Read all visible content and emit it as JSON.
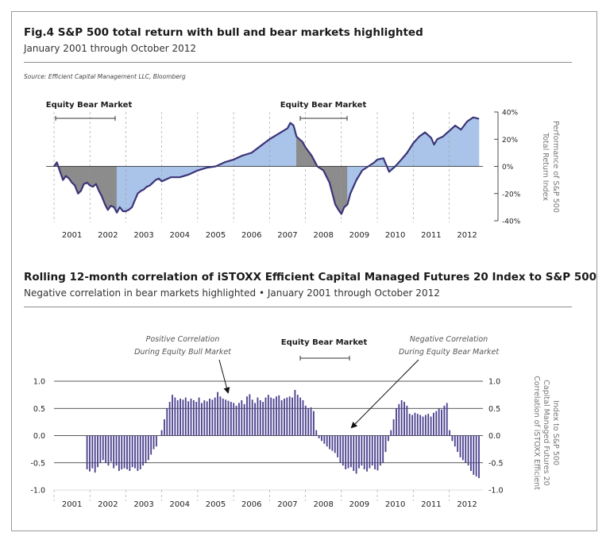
{
  "figure": {
    "title": "Fig.4  S&P 500 total return with bull and bear markets highlighted",
    "subtitle": "January 2001 through October 2012",
    "source": "Source: Efficient Capital Management LLC, Bloomberg"
  },
  "section2": {
    "title": "Rolling 12-month correlation of iSTOXX Efficient Capital Managed Futures 20 Index to S&P 500",
    "subtitle": "Negative correlation in bear markets highlighted • January 2001 through October 2012"
  },
  "chart_data": [
    {
      "type": "area",
      "x_axis": [
        "2001",
        "2002",
        "2003",
        "2004",
        "2005",
        "2006",
        "2007",
        "2008",
        "2009",
        "2010",
        "2011",
        "2012"
      ],
      "ylabel_lines": [
        "Performance of S&P 500",
        "Total Return Index"
      ],
      "yticks": [
        "40%",
        "20%",
        "0%",
        "-20%",
        "-40%"
      ],
      "ylim": [
        -40,
        40
      ],
      "xlim": [
        2001.0,
        2012.83
      ],
      "bear_label": "Equity Bear Market",
      "bear_markets": [
        [
          2001.0,
          2002.75
        ],
        [
          2007.75,
          2009.17
        ]
      ],
      "colors": {
        "bull": "#a9c4e8",
        "bear": "#8c8c8c",
        "line": "#3b3478"
      },
      "series": [
        {
          "x": [
            2001.0,
            2001.08,
            2001.17,
            2001.25,
            2001.33,
            2001.42,
            2001.5,
            2001.58,
            2001.67,
            2001.75,
            2001.83,
            2001.92,
            2002.0,
            2002.08,
            2002.17,
            2002.25,
            2002.33,
            2002.42,
            2002.5,
            2002.58,
            2002.67,
            2002.75,
            2002.83,
            2002.92,
            2003.0,
            2003.08,
            2003.17,
            2003.25,
            2003.33,
            2003.42,
            2003.5,
            2003.58,
            2003.67,
            2003.75,
            2003.83,
            2003.92,
            2004.0,
            2004.25,
            2004.5,
            2004.75,
            2005.0,
            2005.25,
            2005.5,
            2005.75,
            2006.0,
            2006.25,
            2006.5,
            2006.75,
            2007.0,
            2007.25,
            2007.5,
            2007.58,
            2007.67,
            2007.75,
            2007.83,
            2007.92,
            2008.0,
            2008.17,
            2008.33,
            2008.5,
            2008.67,
            2008.75,
            2008.83,
            2008.92,
            2009.0,
            2009.08,
            2009.17,
            2009.25,
            2009.42,
            2009.58,
            2009.75,
            2009.92,
            2010.0,
            2010.17,
            2010.33,
            2010.5,
            2010.67,
            2010.83,
            2011.0,
            2011.17,
            2011.33,
            2011.5,
            2011.58,
            2011.67,
            2011.83,
            2012.0,
            2012.17,
            2012.33,
            2012.5,
            2012.67,
            2012.83
          ],
          "y": [
            0,
            3,
            -4,
            -10,
            -7,
            -9,
            -12,
            -14,
            -20,
            -18,
            -13,
            -12,
            -14,
            -15,
            -13,
            -18,
            -22,
            -28,
            -32,
            -29,
            -30,
            -34,
            -30,
            -33,
            -33,
            -32,
            -30,
            -25,
            -20,
            -18,
            -17,
            -15,
            -14,
            -12,
            -10,
            -9,
            -11,
            -8,
            -8,
            -6,
            -3,
            -1,
            0,
            3,
            5,
            8,
            10,
            15,
            20,
            24,
            28,
            32,
            30,
            22,
            20,
            18,
            14,
            8,
            0,
            -3,
            -12,
            -20,
            -28,
            -32,
            -35,
            -30,
            -28,
            -20,
            -10,
            -3,
            0,
            3,
            5,
            6,
            -4,
            0,
            5,
            10,
            17,
            22,
            25,
            21,
            16,
            20,
            22,
            26,
            30,
            27,
            33,
            36,
            35
          ]
        }
      ]
    },
    {
      "type": "bar",
      "x_axis": [
        "2001",
        "2002",
        "2003",
        "2004",
        "2005",
        "2006",
        "2007",
        "2008",
        "2009",
        "2010",
        "2011",
        "2012"
      ],
      "ylabel_lines": [
        "Correlation of iSTOXX Efficient",
        "Capital Managed Futures 20",
        "Index to S&P 500"
      ],
      "yticks": [
        "1.0",
        "0.5",
        "0.0",
        "-0.5",
        "-1.0"
      ],
      "ylim": [
        -1.0,
        1.0
      ],
      "xlim": [
        2001.0,
        2012.83
      ],
      "bear_label": "Equity Bear Market",
      "bear_range": [
        2007.75,
        2009.17
      ],
      "annotations": {
        "positive": [
          "Positive Correlation",
          "During Equity Bull Market"
        ],
        "negative": [
          "Negative Correlation",
          "During Equity Bear Market"
        ]
      },
      "colors": {
        "bar": "#4c4290"
      },
      "values": [
        -0.62,
        -0.66,
        -0.6,
        -0.68,
        -0.58,
        -0.5,
        -0.45,
        -0.5,
        -0.55,
        -0.48,
        -0.6,
        -0.55,
        -0.65,
        -0.62,
        -0.6,
        -0.62,
        -0.65,
        -0.58,
        -0.6,
        -0.65,
        -0.62,
        -0.55,
        -0.5,
        -0.45,
        -0.35,
        -0.25,
        -0.2,
        0.0,
        0.1,
        0.3,
        0.5,
        0.62,
        0.75,
        0.7,
        0.65,
        0.68,
        0.66,
        0.7,
        0.63,
        0.68,
        0.65,
        0.62,
        0.7,
        0.6,
        0.65,
        0.63,
        0.68,
        0.66,
        0.7,
        0.8,
        0.72,
        0.68,
        0.66,
        0.64,
        0.62,
        0.6,
        0.55,
        0.6,
        0.65,
        0.58,
        0.72,
        0.76,
        0.66,
        0.6,
        0.7,
        0.65,
        0.62,
        0.7,
        0.75,
        0.7,
        0.68,
        0.72,
        0.74,
        0.65,
        0.68,
        0.7,
        0.72,
        0.7,
        0.84,
        0.75,
        0.7,
        0.65,
        0.55,
        0.5,
        0.52,
        0.45,
        0.1,
        -0.05,
        -0.1,
        -0.15,
        -0.2,
        -0.25,
        -0.28,
        -0.32,
        -0.4,
        -0.5,
        -0.55,
        -0.62,
        -0.6,
        -0.58,
        -0.65,
        -0.7,
        -0.6,
        -0.55,
        -0.62,
        -0.66,
        -0.6,
        -0.55,
        -0.62,
        -0.64,
        -0.55,
        -0.5,
        -0.3,
        -0.1,
        0.1,
        0.3,
        0.5,
        0.58,
        0.65,
        0.62,
        0.55,
        0.4,
        0.38,
        0.42,
        0.4,
        0.38,
        0.35,
        0.38,
        0.4,
        0.35,
        0.42,
        0.45,
        0.5,
        0.48,
        0.55,
        0.6,
        0.1,
        -0.1,
        -0.2,
        -0.3,
        -0.4,
        -0.45,
        -0.5,
        -0.55,
        -0.65,
        -0.72,
        -0.75,
        -0.78
      ]
    }
  ]
}
